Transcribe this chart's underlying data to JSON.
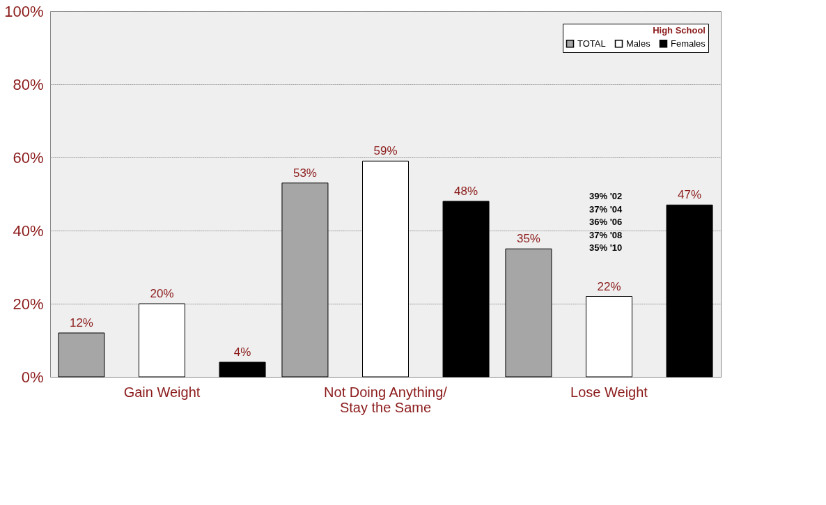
{
  "chart_data": {
    "type": "bar",
    "legend_title": "High School",
    "categories": [
      "Gain Weight",
      "Not Doing Anything/\nStay the Same",
      "Lose Weight"
    ],
    "series": [
      {
        "name": "TOTAL",
        "color": "#a6a6a6",
        "values": [
          12,
          53,
          35
        ]
      },
      {
        "name": "Males",
        "color": "#ffffff",
        "values": [
          20,
          59,
          22
        ]
      },
      {
        "name": "Females",
        "color": "#000000",
        "values": [
          4,
          48,
          47
        ]
      }
    ],
    "ylim": [
      0,
      100
    ],
    "yticks": [
      {
        "value": 0,
        "label": "0%"
      },
      {
        "value": 20,
        "label": "20%"
      },
      {
        "value": 40,
        "label": "40%"
      },
      {
        "value": 60,
        "label": "60%"
      },
      {
        "value": 80,
        "label": "80%"
      },
      {
        "value": 100,
        "label": "100%"
      }
    ],
    "value_labels": [
      [
        "12%",
        "53%",
        "35%"
      ],
      [
        "20%",
        "59%",
        "22%"
      ],
      [
        "4%",
        "48%",
        "47%"
      ]
    ],
    "annotations": [
      "39% '02",
      "37% '04",
      "36% '06",
      "37% '08",
      "35% '10"
    ],
    "grid": "y",
    "legend": "top right"
  }
}
